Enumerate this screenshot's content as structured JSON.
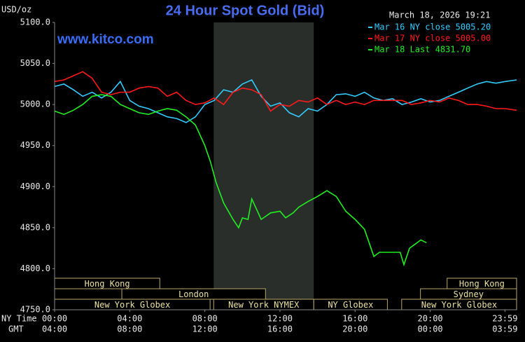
{
  "chart_data": {
    "type": "line",
    "title": "24 Hour Spot Gold (Bid)",
    "unit_label": "USD/oz",
    "timestamp": "March 18, 2026 19:21",
    "watermark": "www.kitco.com",
    "x_axis_label": "NY Time",
    "x2_axis_label": "GMT",
    "xlim": [
      0,
      24.6
    ],
    "ylim": [
      4750,
      5100
    ],
    "yticks": [
      {
        "value": 4750,
        "label": "4750.0"
      },
      {
        "value": 4800,
        "label": "4800.0"
      },
      {
        "value": 4850,
        "label": "4850.0"
      },
      {
        "value": 4900,
        "label": "4900.0"
      },
      {
        "value": 4950,
        "label": "4950.0"
      },
      {
        "value": 5000,
        "label": "5000.0"
      },
      {
        "value": 5050,
        "label": "5050.0"
      },
      {
        "value": 5100,
        "label": "5100.0"
      }
    ],
    "xticks": [
      {
        "value": 0,
        "label": "00:00"
      },
      {
        "value": 4,
        "label": "04:00"
      },
      {
        "value": 8,
        "label": "08:00"
      },
      {
        "value": 12,
        "label": "12:00"
      },
      {
        "value": 16,
        "label": "16:00"
      },
      {
        "value": 20,
        "label": "20:00"
      },
      {
        "value": 23.98,
        "label": "23:59"
      }
    ],
    "x2ticks": [
      {
        "value": 0,
        "label": "04:00"
      },
      {
        "value": 4,
        "label": "08:00"
      },
      {
        "value": 8,
        "label": "12:00"
      },
      {
        "value": 12,
        "label": "16:00"
      },
      {
        "value": 16,
        "label": "20:00"
      },
      {
        "value": 20,
        "label": "00:00"
      },
      {
        "value": 23.98,
        "label": "03:59"
      }
    ],
    "shaded_range": [
      8.47,
      13.8
    ],
    "sessions": [
      {
        "label": "Hong Kong",
        "row": 0,
        "range": [
          0,
          5.6
        ]
      },
      {
        "label": "Hong Kong",
        "row": 0,
        "range": [
          20.9,
          24.6
        ]
      },
      {
        "label": "London",
        "row": 1,
        "range": [
          3.58,
          11.23
        ]
      },
      {
        "label": "Sydney",
        "row": 1,
        "range": [
          19.48,
          24.6
        ]
      },
      {
        "label": "New York Globex",
        "row": 2,
        "range": [
          0,
          8.28
        ]
      },
      {
        "label": "New York NYMEX",
        "row": 2,
        "range": [
          8.47,
          13.8
        ]
      },
      {
        "label": "NY Globex",
        "row": 2,
        "range": [
          13.8,
          17.72
        ]
      },
      {
        "label": "New York Globex",
        "row": 2,
        "range": [
          18.48,
          24.6
        ]
      }
    ],
    "series": [
      {
        "name": "Mar 16 NY close 5005.20",
        "color": "#33ccff",
        "x": [
          0,
          0.5,
          1,
          1.5,
          2,
          2.5,
          3,
          3.5,
          4,
          4.5,
          5,
          5.5,
          6,
          6.5,
          7,
          7.5,
          8,
          8.5,
          9,
          9.5,
          10,
          10.5,
          11,
          11.5,
          12,
          12.5,
          13,
          13.5,
          14,
          14.5,
          15,
          15.5,
          16,
          16.5,
          17,
          17.5,
          18,
          18.5,
          19,
          19.5,
          20,
          20.5,
          21,
          21.5,
          22,
          22.5,
          23,
          23.5,
          24,
          24.6
        ],
        "values": [
          5022,
          5025,
          5018,
          5010,
          5015,
          5008,
          5015,
          5028,
          5005,
          4998,
          4995,
          4990,
          4985,
          4983,
          4978,
          4985,
          5000,
          5005,
          5018,
          5015,
          5025,
          5030,
          5010,
          4998,
          5002,
          4990,
          4985,
          4995,
          4992,
          5000,
          5012,
          5013,
          5010,
          5015,
          5008,
          5005,
          5007,
          5000,
          5003,
          5007,
          5003,
          5005,
          5010,
          5015,
          5020,
          5025,
          5028,
          5026,
          5028,
          5030
        ]
      },
      {
        "name": "Mar 17 NY close 5005.00",
        "color": "#ff1a1a",
        "x": [
          0,
          0.5,
          1,
          1.5,
          2,
          2.5,
          3,
          3.5,
          4,
          4.5,
          5,
          5.5,
          6,
          6.5,
          7,
          7.5,
          8,
          8.5,
          9,
          9.5,
          10,
          10.5,
          11,
          11.5,
          12,
          12.5,
          13,
          13.5,
          14,
          14.5,
          15,
          15.5,
          16,
          16.5,
          17,
          17.5,
          18,
          18.5,
          19,
          19.5,
          20,
          20.5,
          21,
          21.5,
          22,
          22.5,
          23,
          23.5,
          24,
          24.6
        ],
        "values": [
          5028,
          5030,
          5035,
          5040,
          5032,
          5015,
          5012,
          5015,
          5015,
          5020,
          5022,
          5020,
          5010,
          5015,
          5005,
          5000,
          5002,
          5008,
          5000,
          5015,
          5020,
          5018,
          5012,
          4992,
          5000,
          4998,
          5005,
          5003,
          5008,
          5000,
          5005,
          5000,
          5003,
          5000,
          5005,
          5005,
          5005,
          5005,
          5000,
          5002,
          5005,
          5003,
          5008,
          5005,
          5000,
          5000,
          4998,
          4995,
          4995,
          4993
        ]
      },
      {
        "name": "Mar 18 Last 4831.70",
        "color": "#22ee22",
        "x": [
          0,
          0.5,
          1,
          1.5,
          2,
          2.5,
          3,
          3.5,
          4,
          4.5,
          5,
          5.5,
          6,
          6.5,
          7,
          7.5,
          7.7,
          8,
          8.3,
          8.6,
          9,
          9.5,
          9.8,
          10,
          10.3,
          10.5,
          10.8,
          11,
          11.5,
          12,
          12.3,
          12.7,
          13,
          13.5,
          14,
          14.5,
          15,
          15.5,
          16,
          16.5,
          17,
          17.3,
          18.4,
          18.6,
          18.9,
          19.2,
          19.5,
          19.8
        ],
        "values": [
          4992,
          4988,
          4993,
          5000,
          5010,
          5012,
          5010,
          5000,
          4995,
          4990,
          4988,
          4992,
          4995,
          4993,
          4985,
          4975,
          4965,
          4950,
          4930,
          4905,
          4880,
          4860,
          4850,
          4862,
          4860,
          4885,
          4870,
          4860,
          4868,
          4870,
          4862,
          4868,
          4875,
          4882,
          4888,
          4895,
          4888,
          4870,
          4860,
          4848,
          4815,
          4820,
          4820,
          4805,
          4825,
          4830,
          4835,
          4831.7
        ]
      }
    ]
  }
}
